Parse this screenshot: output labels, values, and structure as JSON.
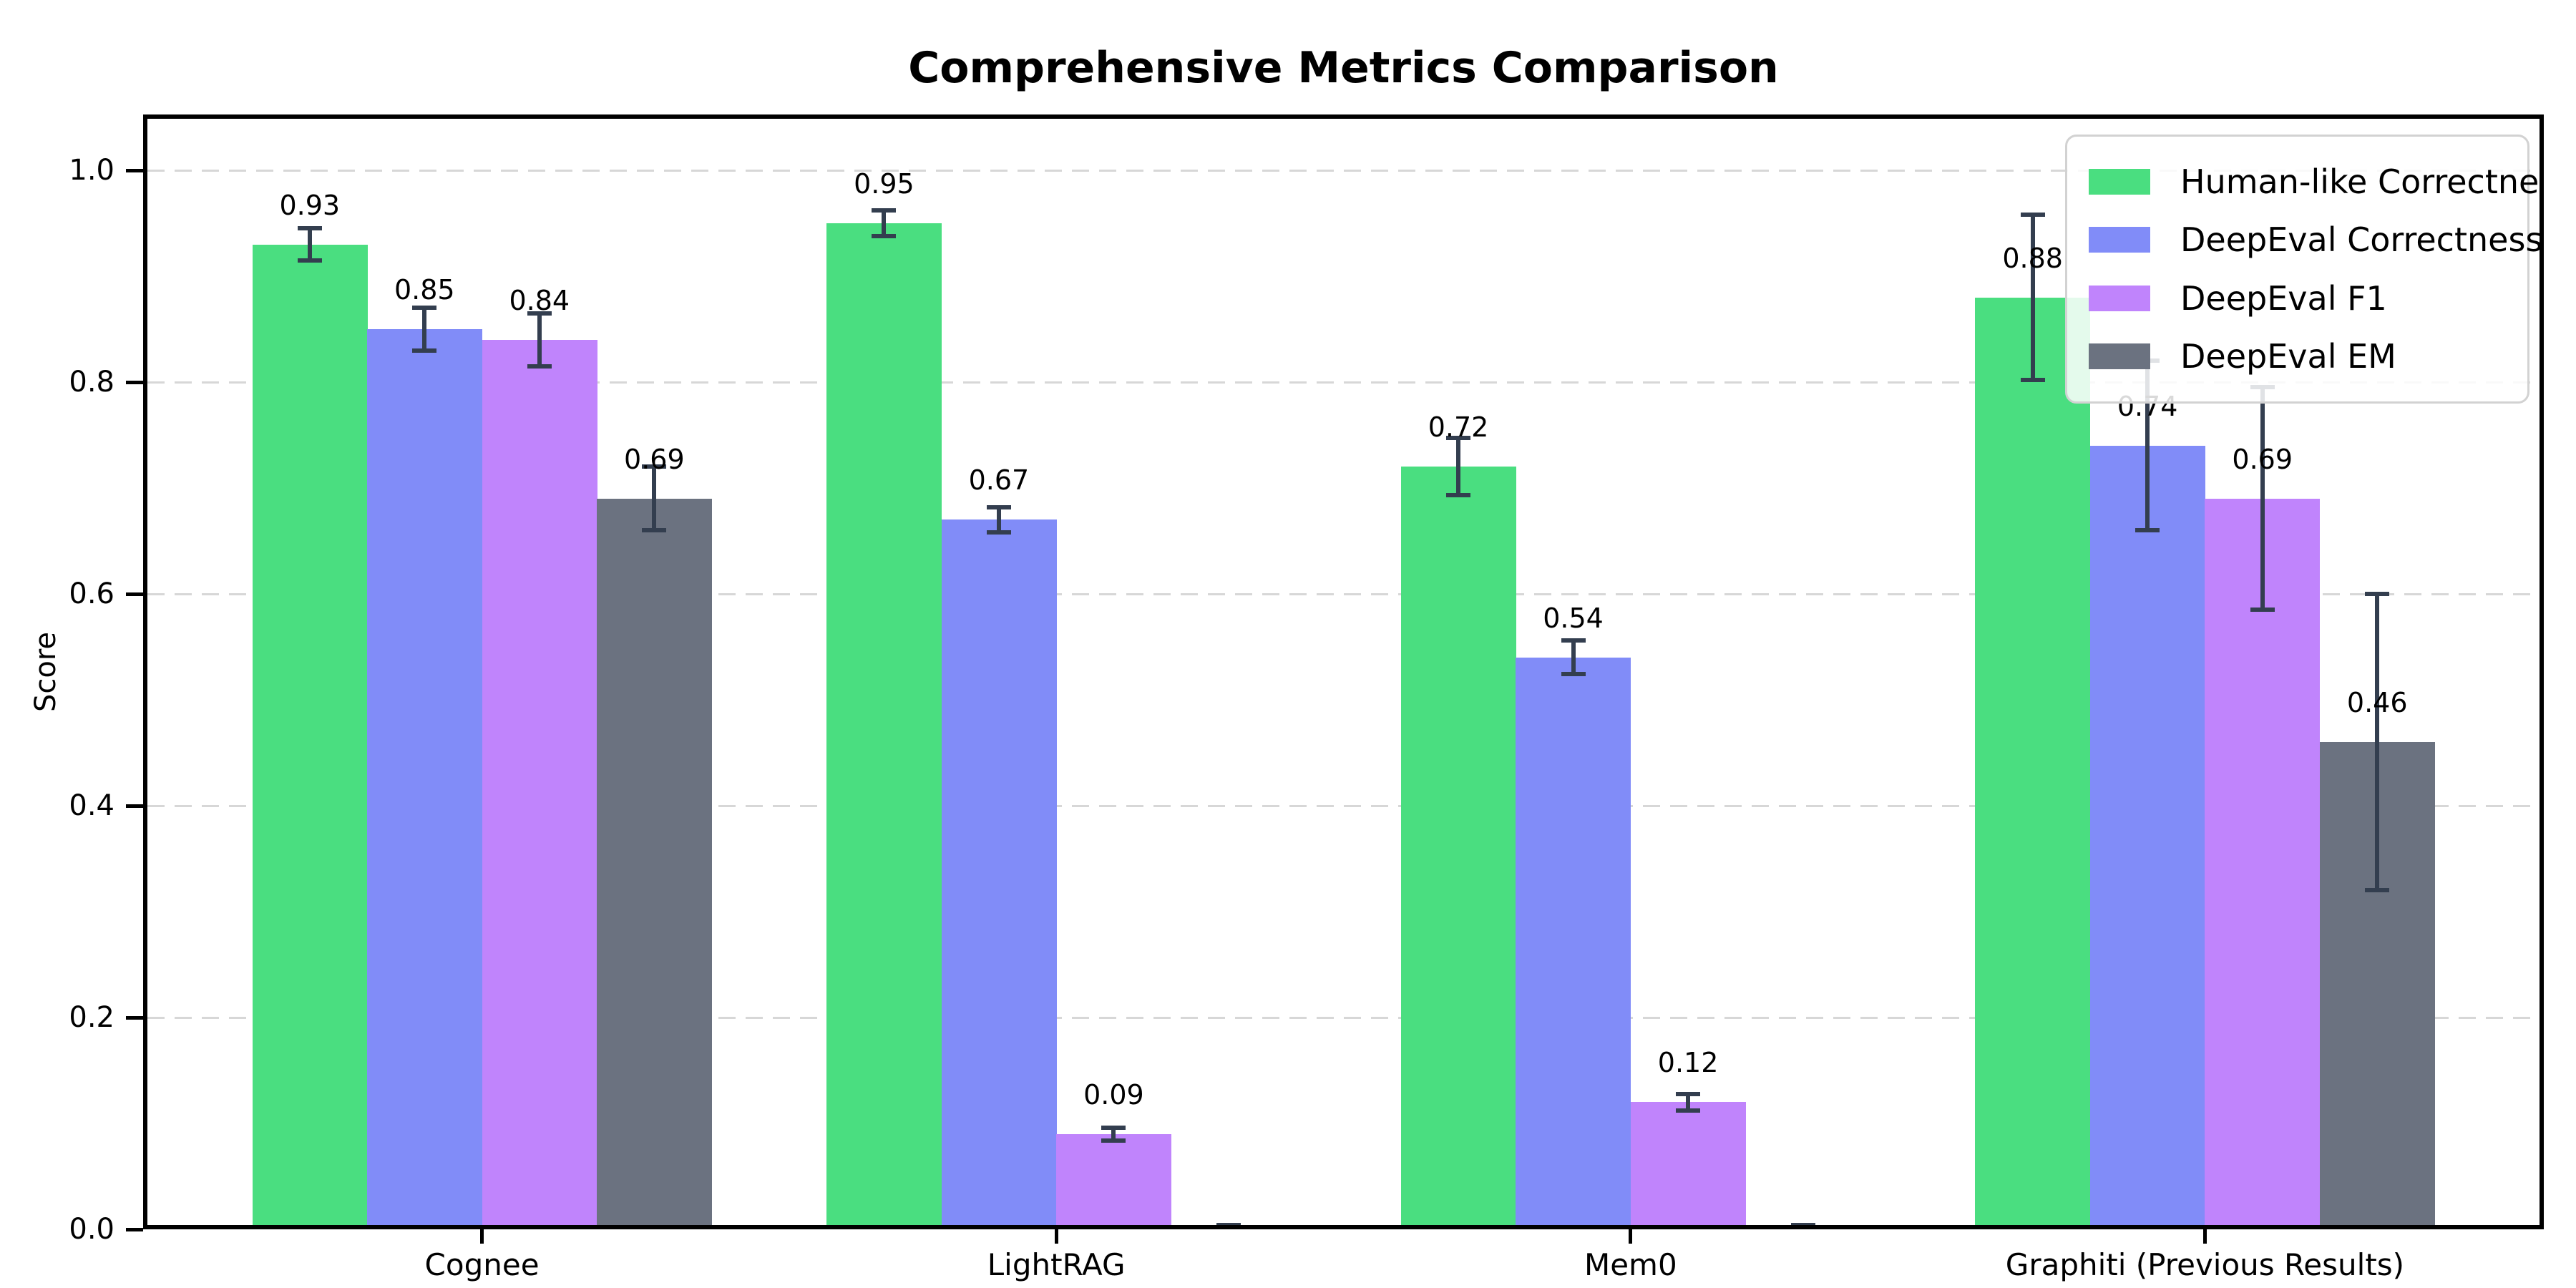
{
  "chart_data": {
    "type": "bar",
    "title": "Comprehensive Metrics Comparison",
    "xlabel": "",
    "ylabel": "Score",
    "categories": [
      "Cognee",
      "LightRAG",
      "Mem0",
      "Graphiti (Previous Results)"
    ],
    "series": [
      {
        "name": "Human-like Correctness",
        "color": "#4ade80",
        "values": [
          0.93,
          0.95,
          0.72,
          0.88
        ],
        "errors": [
          0.015,
          0.012,
          0.027,
          0.078
        ],
        "labels": [
          "0.93",
          "0.95",
          "0.72",
          "0.88"
        ]
      },
      {
        "name": "DeepEval Correctness",
        "color": "#818cf8",
        "values": [
          0.85,
          0.67,
          0.54,
          0.74
        ],
        "errors": [
          0.02,
          0.012,
          0.016,
          0.08
        ],
        "labels": [
          "0.85",
          "0.67",
          "0.54",
          "0.74"
        ]
      },
      {
        "name": "DeepEval F1",
        "color": "#c084fc",
        "values": [
          0.84,
          0.09,
          0.12,
          0.69
        ],
        "errors": [
          0.025,
          0.006,
          0.008,
          0.105
        ],
        "labels": [
          "0.84",
          "0.09",
          "0.12",
          "0.69"
        ]
      },
      {
        "name": "DeepEval EM",
        "color": "#6b7280",
        "values": [
          0.69,
          0.0,
          0.0,
          0.46
        ],
        "errors": [
          0.03,
          0.004,
          0.004,
          0.14
        ],
        "labels": [
          "0.69",
          null,
          null,
          "0.46"
        ]
      }
    ],
    "ytick_labels": [
      "0.0",
      "0.2",
      "0.4",
      "0.6",
      "0.8",
      "1.0"
    ],
    "ytick_values": [
      0.0,
      0.2,
      0.4,
      0.6,
      0.8,
      1.0
    ],
    "ylim": [
      0,
      1.053
    ],
    "grid": "horizontal-dashed",
    "legend_position": "upper-right",
    "colors": {
      "error_bar": "#333e4f",
      "grid": "#d7d7d7",
      "spine": "#000000",
      "background": "#ffffff"
    }
  }
}
